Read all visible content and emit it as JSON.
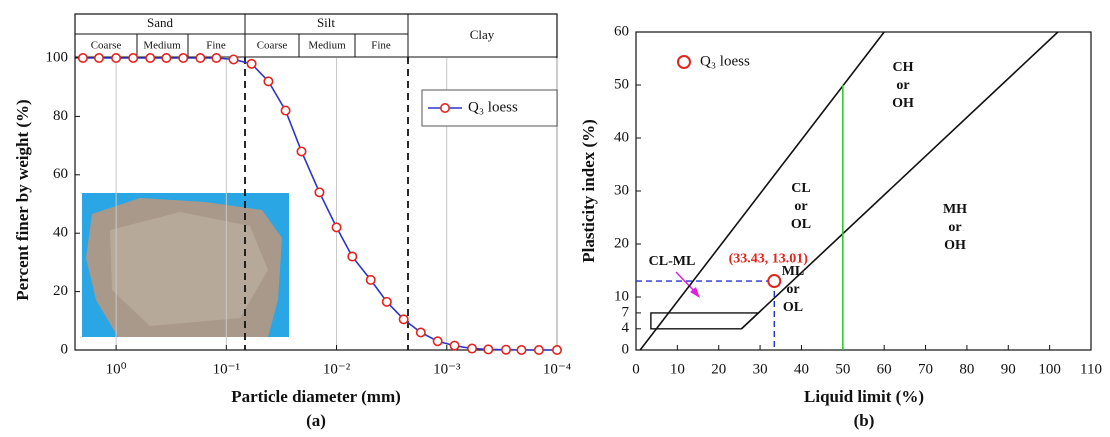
{
  "chart_data": [
    {
      "type": "line",
      "caption": "(a)",
      "x_label": "Particle diameter (mm)",
      "y_label": "Percent finer by weight (%)",
      "log_x": true,
      "grid": "x",
      "legend": "right",
      "header": {
        "groups": [
          "Sand",
          "Silt",
          "Clay"
        ],
        "subgroups": [
          "Coarse",
          "Medium",
          "Fine",
          "Coarse",
          "Medium",
          "Fine"
        ]
      },
      "x": [
        2.0,
        1.43,
        1.0,
        0.7,
        0.49,
        0.35,
        0.246,
        0.172,
        0.123,
        0.086,
        0.059,
        0.0415,
        0.029,
        0.0208,
        0.0143,
        0.01,
        0.0072,
        0.0049,
        0.0035,
        0.00246,
        0.00172,
        0.00121,
        0.00085,
        0.00059,
        0.00042,
        0.00029,
        0.00021,
        0.000146,
        0.0001
      ],
      "series": [
        {
          "name": "Q₃ loess",
          "color": "#2b35c8",
          "marker_color": "#e3241c",
          "values": [
            100,
            100,
            100,
            100,
            100,
            100,
            100,
            100,
            100,
            99.5,
            98,
            92,
            82,
            68,
            54,
            42,
            32,
            24,
            16.5,
            10.5,
            6,
            3,
            1.5,
            0.5,
            0.2,
            0.1,
            0,
            0,
            0
          ]
        }
      ],
      "xlim": [
        2.36,
        0.0001
      ],
      "xticks": [
        {
          "value": 1,
          "label": "10⁰"
        },
        {
          "value": 0.1,
          "label": "10⁻¹"
        },
        {
          "value": 0.01,
          "label": "10⁻²"
        },
        {
          "value": 0.001,
          "label": "10⁻³"
        },
        {
          "value": 0.0001,
          "label": "10⁻⁴"
        }
      ],
      "ylim": [
        0,
        100
      ],
      "yticks": [
        0,
        20,
        40,
        60,
        80,
        100
      ]
    },
    {
      "type": "scatter",
      "caption": "(b)",
      "x_label": "Liquid limit (%)",
      "y_label": "Plasticity index (%)",
      "legend": "upper left",
      "x": [
        33.43
      ],
      "series": [
        {
          "name": "Q₃ loess",
          "color": "#e3241c",
          "values": [
            13.01
          ],
          "value_labels": [
            "(33.43, 13.01)"
          ]
        }
      ],
      "boundary_lines": [
        {
          "x": [
            1,
            60
          ],
          "y": [
            0,
            60
          ],
          "color": "#111111"
        },
        {
          "x": [
            25.5,
            102
          ],
          "y": [
            4,
            60
          ],
          "color": "#111111"
        },
        {
          "x": [
            50,
            50
          ],
          "y": [
            0,
            50
          ],
          "color": "#2ecc2e"
        }
      ],
      "cl_ml_zone": {
        "x": [
          3.6,
          25.5,
          29.6,
          3.6
        ],
        "y": [
          4,
          4,
          7,
          7
        ]
      },
      "annotations": [
        [
          "CH",
          "or",
          "OH"
        ],
        [
          "CL",
          "or",
          "OL"
        ],
        [
          "ML",
          "or",
          "OL"
        ],
        [
          "MH",
          "or",
          "OH"
        ],
        [
          "CL-ML"
        ]
      ],
      "xlim": [
        0,
        110
      ],
      "xticks": [
        0,
        10,
        20,
        30,
        40,
        50,
        60,
        70,
        80,
        90,
        100,
        110
      ],
      "ylim": [
        0,
        60
      ],
      "yticks": [
        0,
        4,
        7,
        10,
        20,
        30,
        40,
        50,
        60
      ]
    }
  ]
}
